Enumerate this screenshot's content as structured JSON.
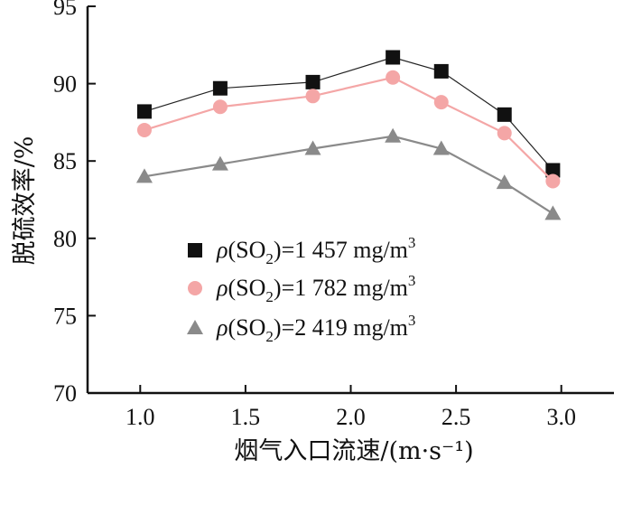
{
  "chart_data": {
    "type": "line",
    "title": "",
    "xlabel": "烟气入口流速/(m·s⁻¹)",
    "ylabel": "脱硫效率/%",
    "xlim": [
      0.75,
      3.25
    ],
    "ylim": [
      70,
      95
    ],
    "xticks": [
      1.0,
      1.5,
      2.0,
      2.5,
      3.0
    ],
    "xtick_labels": [
      "1.0",
      "1.5",
      "2.0",
      "2.5",
      "3.0"
    ],
    "yticks": [
      70,
      75,
      80,
      85,
      90,
      95
    ],
    "ytick_labels": [
      "70",
      "75",
      "80",
      "85",
      "90",
      "95"
    ],
    "grid": false,
    "legend_position": "lower-left",
    "series": [
      {
        "name": "ρ(SO₂)=1 457 mg/m³",
        "legend_parts": {
          "sym": "ρ",
          "open": "(SO",
          "sub": "2",
          "close": ")",
          "eq": "=1 457 mg/m",
          "sup": "3"
        },
        "marker": "square",
        "marker_color": "#111111",
        "line_color": "#222222",
        "x": [
          1.02,
          1.38,
          1.82,
          2.2,
          2.43,
          2.73,
          2.96
        ],
        "values": [
          88.2,
          89.7,
          90.1,
          91.7,
          90.8,
          88.0,
          84.4
        ]
      },
      {
        "name": "ρ(SO₂)=1 782 mg/m³",
        "legend_parts": {
          "sym": "ρ",
          "open": "(SO",
          "sub": "2",
          "close": ")",
          "eq": "=1 782 mg/m",
          "sup": "3"
        },
        "marker": "circle",
        "marker_color": "#f4a6a6",
        "line_color": "#f4a6a6",
        "x": [
          1.02,
          1.38,
          1.82,
          2.2,
          2.43,
          2.73,
          2.96
        ],
        "values": [
          87.0,
          88.5,
          89.2,
          90.4,
          88.8,
          86.8,
          83.7
        ]
      },
      {
        "name": "ρ(SO₂)=2 419 mg/m³",
        "legend_parts": {
          "sym": "ρ",
          "open": "(SO",
          "sub": "2",
          "close": ")",
          "eq": "=2 419 mg/m",
          "sup": "3"
        },
        "marker": "triangle",
        "marker_color": "#8a8a8a",
        "line_color": "#8a8a8a",
        "x": [
          1.02,
          1.38,
          1.82,
          2.2,
          2.43,
          2.73,
          2.96
        ],
        "values": [
          84.0,
          84.8,
          85.8,
          86.6,
          85.8,
          83.6,
          81.6
        ]
      }
    ]
  }
}
